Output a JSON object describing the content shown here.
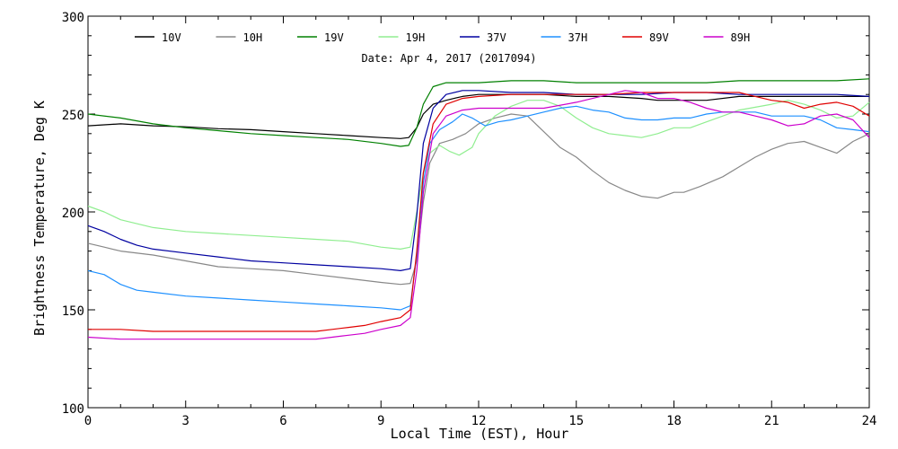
{
  "chart_data": {
    "type": "line",
    "title": "Date: Apr  4, 2017 (2017094)",
    "xlabel": "Local Time (EST), Hour",
    "ylabel": "Brightness Temperature, Deg K",
    "xlim": [
      0,
      24
    ],
    "ylim": [
      100,
      300
    ],
    "xticks": [
      0,
      3,
      6,
      9,
      12,
      15,
      18,
      21,
      24
    ],
    "yticks": [
      100,
      150,
      200,
      250,
      300
    ],
    "grid": false,
    "legend_position": "top",
    "series": [
      {
        "name": "10V",
        "color": "#000000",
        "points": [
          [
            0,
            244
          ],
          [
            1,
            245
          ],
          [
            2,
            244
          ],
          [
            3,
            243.5
          ],
          [
            4,
            242.5
          ],
          [
            5,
            242
          ],
          [
            6,
            241
          ],
          [
            7,
            240
          ],
          [
            8,
            239
          ],
          [
            9,
            238
          ],
          [
            9.6,
            237.5
          ],
          [
            9.85,
            238
          ],
          [
            10.1,
            243
          ],
          [
            10.3,
            250
          ],
          [
            10.6,
            255
          ],
          [
            11,
            257
          ],
          [
            11.5,
            259
          ],
          [
            12,
            260
          ],
          [
            13,
            260
          ],
          [
            14,
            260
          ],
          [
            15,
            259
          ],
          [
            16,
            259
          ],
          [
            17,
            258
          ],
          [
            17.5,
            257
          ],
          [
            18,
            257
          ],
          [
            19,
            257
          ],
          [
            20,
            259
          ],
          [
            21,
            259
          ],
          [
            22,
            259
          ],
          [
            23,
            259
          ],
          [
            24,
            259
          ]
        ]
      },
      {
        "name": "10H",
        "color": "#888888",
        "points": [
          [
            0,
            184
          ],
          [
            0.5,
            182
          ],
          [
            1,
            180
          ],
          [
            2,
            178
          ],
          [
            3,
            175
          ],
          [
            4,
            172
          ],
          [
            5,
            171
          ],
          [
            6,
            170
          ],
          [
            7,
            168
          ],
          [
            8,
            166
          ],
          [
            9,
            164
          ],
          [
            9.6,
            163
          ],
          [
            9.9,
            163.5
          ],
          [
            10.1,
            175
          ],
          [
            10.3,
            205
          ],
          [
            10.5,
            225
          ],
          [
            10.8,
            235
          ],
          [
            11.2,
            237
          ],
          [
            11.6,
            240
          ],
          [
            12,
            245
          ],
          [
            12.5,
            248
          ],
          [
            13,
            250
          ],
          [
            13.5,
            249
          ],
          [
            14,
            241
          ],
          [
            14.5,
            233
          ],
          [
            15,
            228
          ],
          [
            15.5,
            221
          ],
          [
            16,
            215
          ],
          [
            16.5,
            211
          ],
          [
            17,
            208
          ],
          [
            17.5,
            207
          ],
          [
            18,
            210
          ],
          [
            18.3,
            210
          ],
          [
            18.8,
            213
          ],
          [
            19.5,
            218
          ],
          [
            20,
            223
          ],
          [
            20.5,
            228
          ],
          [
            21,
            232
          ],
          [
            21.5,
            235
          ],
          [
            22,
            236
          ],
          [
            22.5,
            233
          ],
          [
            23,
            230
          ],
          [
            23.5,
            236
          ],
          [
            24,
            240
          ]
        ]
      },
      {
        "name": "19V",
        "color": "#008000",
        "points": [
          [
            0,
            250
          ],
          [
            1,
            248
          ],
          [
            2,
            245
          ],
          [
            3,
            243
          ],
          [
            4,
            241.5
          ],
          [
            5,
            240
          ],
          [
            6,
            239
          ],
          [
            7,
            238
          ],
          [
            8,
            237
          ],
          [
            9,
            235
          ],
          [
            9.6,
            233.5
          ],
          [
            9.85,
            234
          ],
          [
            10.1,
            243
          ],
          [
            10.3,
            255
          ],
          [
            10.6,
            264
          ],
          [
            11,
            266
          ],
          [
            12,
            266
          ],
          [
            13,
            267
          ],
          [
            14,
            267
          ],
          [
            15,
            266
          ],
          [
            16,
            266
          ],
          [
            17,
            266
          ],
          [
            18,
            266
          ],
          [
            19,
            266
          ],
          [
            20,
            267
          ],
          [
            21,
            267
          ],
          [
            22,
            267
          ],
          [
            23,
            267
          ],
          [
            24,
            268
          ]
        ]
      },
      {
        "name": "19H",
        "color": "#90EE90",
        "points": [
          [
            0,
            203
          ],
          [
            0.5,
            200
          ],
          [
            1,
            196
          ],
          [
            2,
            192
          ],
          [
            3,
            190
          ],
          [
            4,
            189
          ],
          [
            5,
            188
          ],
          [
            6,
            187
          ],
          [
            7,
            186
          ],
          [
            8,
            185
          ],
          [
            9,
            182
          ],
          [
            9.6,
            181
          ],
          [
            9.9,
            182
          ],
          [
            10.1,
            200
          ],
          [
            10.3,
            220
          ],
          [
            10.5,
            230
          ],
          [
            10.8,
            234
          ],
          [
            11.1,
            231
          ],
          [
            11.4,
            229
          ],
          [
            11.8,
            233
          ],
          [
            12,
            240
          ],
          [
            12.5,
            249
          ],
          [
            13,
            254
          ],
          [
            13.5,
            257
          ],
          [
            14,
            257
          ],
          [
            14.5,
            254
          ],
          [
            15,
            248
          ],
          [
            15.5,
            243
          ],
          [
            16,
            240
          ],
          [
            16.5,
            239
          ],
          [
            17,
            238
          ],
          [
            17.5,
            240
          ],
          [
            18,
            243
          ],
          [
            18.5,
            243
          ],
          [
            19,
            246
          ],
          [
            19.5,
            249
          ],
          [
            20,
            252
          ],
          [
            21,
            255
          ],
          [
            21.5,
            257
          ],
          [
            22,
            255
          ],
          [
            22.5,
            252
          ],
          [
            23,
            248
          ],
          [
            23.5,
            249
          ],
          [
            24,
            256
          ]
        ]
      },
      {
        "name": "37V",
        "color": "#0000A0",
        "points": [
          [
            0,
            193
          ],
          [
            0.5,
            190
          ],
          [
            1,
            186
          ],
          [
            1.5,
            183
          ],
          [
            2,
            181
          ],
          [
            3,
            179
          ],
          [
            4,
            177
          ],
          [
            5,
            175
          ],
          [
            6,
            174
          ],
          [
            7,
            173
          ],
          [
            8,
            172
          ],
          [
            9,
            171
          ],
          [
            9.6,
            170
          ],
          [
            9.9,
            171
          ],
          [
            10.1,
            198
          ],
          [
            10.3,
            235
          ],
          [
            10.6,
            253
          ],
          [
            11,
            260
          ],
          [
            11.5,
            262
          ],
          [
            12,
            262
          ],
          [
            13,
            261
          ],
          [
            14,
            261
          ],
          [
            15,
            260
          ],
          [
            16,
            260
          ],
          [
            17,
            260
          ],
          [
            18,
            261
          ],
          [
            19,
            261
          ],
          [
            20,
            260
          ],
          [
            21,
            260
          ],
          [
            22,
            260
          ],
          [
            23,
            260
          ],
          [
            24,
            259
          ]
        ]
      },
      {
        "name": "37H",
        "color": "#1E90FF",
        "points": [
          [
            0,
            170
          ],
          [
            0.5,
            168
          ],
          [
            1,
            163
          ],
          [
            1.5,
            160
          ],
          [
            2,
            159
          ],
          [
            3,
            157
          ],
          [
            4,
            156
          ],
          [
            5,
            155
          ],
          [
            6,
            154
          ],
          [
            7,
            153
          ],
          [
            8,
            152
          ],
          [
            9,
            151
          ],
          [
            9.6,
            150
          ],
          [
            9.9,
            152
          ],
          [
            10.1,
            178
          ],
          [
            10.3,
            215
          ],
          [
            10.5,
            235
          ],
          [
            10.8,
            242
          ],
          [
            11.2,
            246
          ],
          [
            11.5,
            250
          ],
          [
            11.8,
            248
          ],
          [
            12.2,
            244
          ],
          [
            12.6,
            246
          ],
          [
            13,
            247
          ],
          [
            13.5,
            249
          ],
          [
            14,
            251
          ],
          [
            14.5,
            253
          ],
          [
            15,
            254
          ],
          [
            15.5,
            252
          ],
          [
            16,
            251
          ],
          [
            16.5,
            248
          ],
          [
            17,
            247
          ],
          [
            17.5,
            247
          ],
          [
            18,
            248
          ],
          [
            18.5,
            248
          ],
          [
            19,
            250
          ],
          [
            19.5,
            251
          ],
          [
            20,
            251
          ],
          [
            20.5,
            251
          ],
          [
            21,
            249
          ],
          [
            21.5,
            249
          ],
          [
            22,
            249
          ],
          [
            22.5,
            247
          ],
          [
            23,
            243
          ],
          [
            23.5,
            242
          ],
          [
            24,
            241
          ]
        ]
      },
      {
        "name": "89V",
        "color": "#E00000",
        "points": [
          [
            0,
            140
          ],
          [
            1,
            140
          ],
          [
            2,
            139
          ],
          [
            3,
            139
          ],
          [
            4,
            139
          ],
          [
            5,
            139
          ],
          [
            6,
            139
          ],
          [
            7,
            139
          ],
          [
            7.5,
            140
          ],
          [
            8,
            141
          ],
          [
            8.5,
            142
          ],
          [
            9,
            144
          ],
          [
            9.6,
            146
          ],
          [
            9.9,
            150
          ],
          [
            10.1,
            180
          ],
          [
            10.3,
            220
          ],
          [
            10.6,
            245
          ],
          [
            11,
            255
          ],
          [
            11.5,
            258
          ],
          [
            12,
            259
          ],
          [
            13,
            260
          ],
          [
            14,
            260
          ],
          [
            15,
            260
          ],
          [
            16,
            260
          ],
          [
            17,
            261
          ],
          [
            18,
            261
          ],
          [
            19,
            261
          ],
          [
            20,
            261
          ],
          [
            20.5,
            259
          ],
          [
            21,
            257
          ],
          [
            21.5,
            256
          ],
          [
            22,
            253
          ],
          [
            22.5,
            255
          ],
          [
            23,
            256
          ],
          [
            23.5,
            254
          ],
          [
            24,
            249
          ]
        ]
      },
      {
        "name": "89H",
        "color": "#CC00CC",
        "points": [
          [
            0,
            136
          ],
          [
            1,
            135
          ],
          [
            2,
            135
          ],
          [
            3,
            135
          ],
          [
            4,
            135
          ],
          [
            5,
            135
          ],
          [
            6,
            135
          ],
          [
            7,
            135
          ],
          [
            7.5,
            136
          ],
          [
            8,
            137
          ],
          [
            8.5,
            138
          ],
          [
            9,
            140
          ],
          [
            9.6,
            142
          ],
          [
            9.9,
            146
          ],
          [
            10.1,
            170
          ],
          [
            10.3,
            210
          ],
          [
            10.6,
            240
          ],
          [
            11,
            249
          ],
          [
            11.5,
            252
          ],
          [
            12,
            253
          ],
          [
            13,
            253
          ],
          [
            14,
            253
          ],
          [
            15,
            256
          ],
          [
            16,
            260
          ],
          [
            16.5,
            262
          ],
          [
            17,
            261
          ],
          [
            17.5,
            258
          ],
          [
            18,
            258
          ],
          [
            18.5,
            256
          ],
          [
            19,
            253
          ],
          [
            19.5,
            251
          ],
          [
            20,
            251
          ],
          [
            20.5,
            249
          ],
          [
            21,
            247
          ],
          [
            21.5,
            244
          ],
          [
            22,
            245
          ],
          [
            22.5,
            249
          ],
          [
            23,
            250
          ],
          [
            23.5,
            247
          ],
          [
            24,
            238
          ]
        ]
      }
    ]
  }
}
